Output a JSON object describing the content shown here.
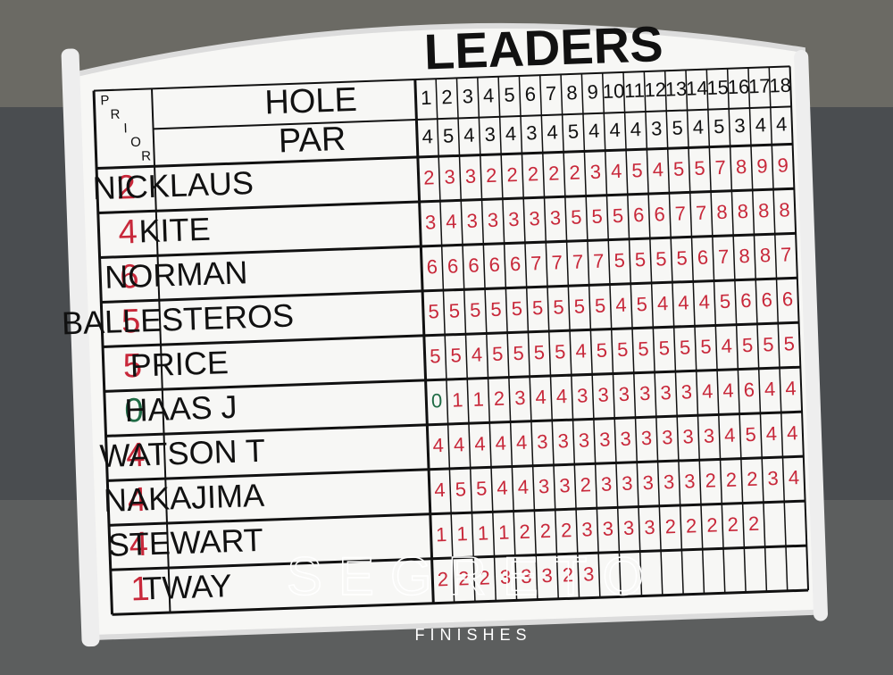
{
  "board": {
    "title": "LEADERS",
    "prior_label": [
      "P",
      "R",
      "I",
      "O",
      "R"
    ],
    "hole_label": "HOLE",
    "par_label": "PAR",
    "holes": [
      1,
      2,
      3,
      4,
      5,
      6,
      7,
      8,
      9,
      10,
      11,
      12,
      13,
      14,
      15,
      16,
      17,
      18
    ],
    "par": [
      4,
      5,
      4,
      3,
      4,
      3,
      4,
      5,
      4,
      4,
      4,
      3,
      5,
      4,
      5,
      3,
      4,
      4
    ],
    "under_par_color": "#c8283a",
    "even_color": "#1f6b45",
    "players": [
      {
        "name": "NICKLAUS",
        "prior": 2,
        "scores": [
          2,
          3,
          3,
          2,
          2,
          2,
          2,
          2,
          3,
          4,
          5,
          4,
          5,
          5,
          7,
          8,
          9,
          9
        ]
      },
      {
        "name": "KITE",
        "prior": 4,
        "scores": [
          3,
          4,
          3,
          3,
          3,
          3,
          3,
          5,
          5,
          5,
          6,
          6,
          7,
          7,
          8,
          8,
          8,
          8
        ]
      },
      {
        "name": "NORMAN",
        "prior": 6,
        "scores": [
          6,
          6,
          6,
          6,
          6,
          7,
          7,
          7,
          7,
          5,
          5,
          5,
          5,
          6,
          7,
          8,
          8,
          7
        ]
      },
      {
        "name": "BALLESTEROS",
        "prior": 5,
        "scores": [
          5,
          5,
          5,
          5,
          5,
          5,
          5,
          5,
          5,
          4,
          5,
          4,
          4,
          4,
          5,
          6,
          6,
          6
        ]
      },
      {
        "name": "PRICE",
        "prior": 5,
        "scores": [
          5,
          5,
          4,
          5,
          5,
          5,
          5,
          4,
          5,
          5,
          5,
          5,
          5,
          5,
          4,
          5,
          5,
          5
        ]
      },
      {
        "name": "HAAS J",
        "prior": 0,
        "scores": [
          0,
          1,
          1,
          2,
          3,
          4,
          4,
          3,
          3,
          3,
          3,
          3,
          3,
          4,
          4,
          6,
          4,
          4
        ]
      },
      {
        "name": "WATSON T",
        "prior": 4,
        "scores": [
          4,
          4,
          4,
          4,
          4,
          3,
          3,
          3,
          3,
          3,
          3,
          3,
          3,
          3,
          4,
          5,
          4,
          4
        ]
      },
      {
        "name": "NAKAJIMA",
        "prior": 4,
        "scores": [
          4,
          5,
          5,
          4,
          4,
          3,
          3,
          2,
          3,
          3,
          3,
          3,
          3,
          2,
          2,
          2,
          3,
          4
        ]
      },
      {
        "name": "STEWART",
        "prior": 4,
        "scores": [
          1,
          1,
          1,
          1,
          2,
          2,
          2,
          3,
          3,
          3,
          3,
          2,
          2,
          2,
          2,
          2,
          null,
          null
        ]
      },
      {
        "name": "TWAY",
        "prior": 1,
        "scores": [
          2,
          2,
          2,
          3,
          3,
          3,
          2,
          3,
          null,
          null,
          null,
          null,
          null,
          null,
          null,
          null,
          null,
          null
        ]
      }
    ]
  },
  "watermark": {
    "brand": "SEGRETO",
    "tagline": "FINISHES"
  }
}
